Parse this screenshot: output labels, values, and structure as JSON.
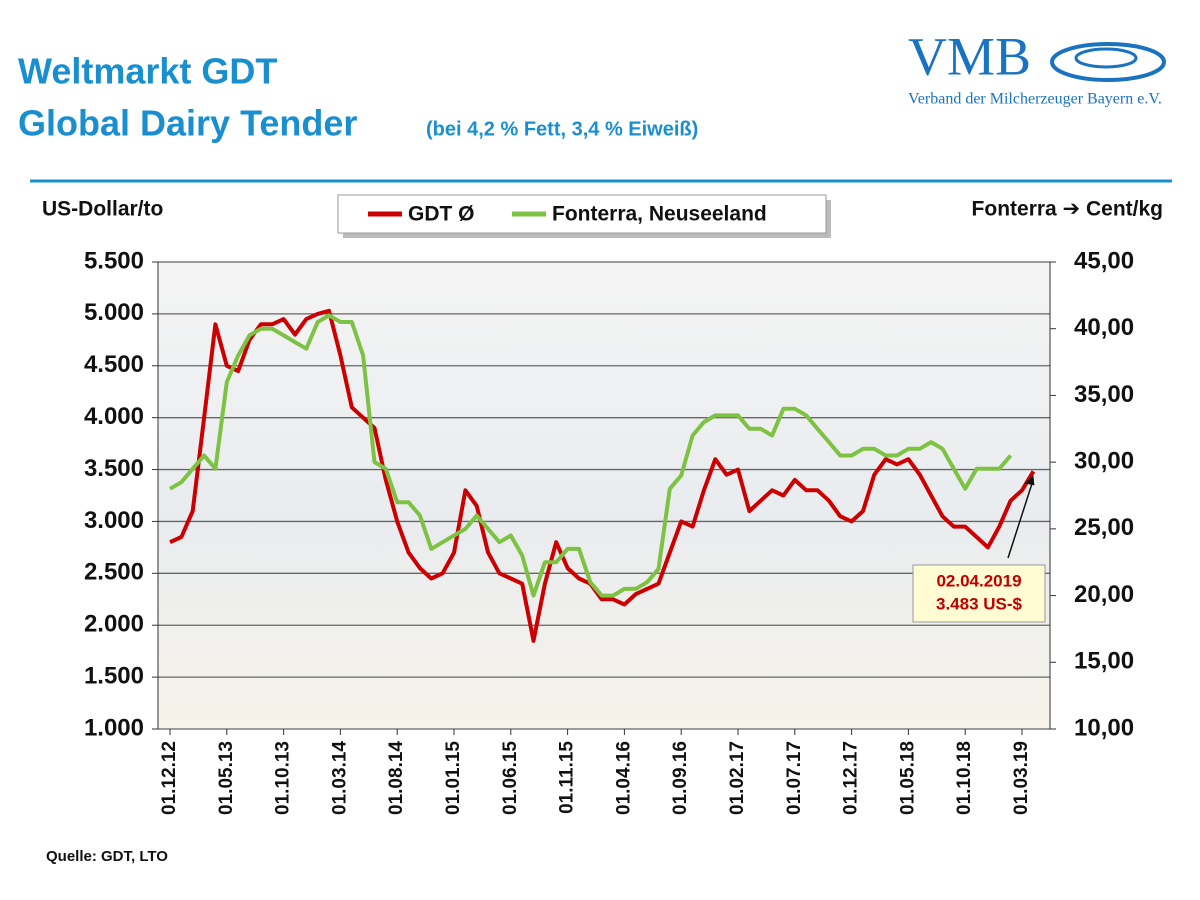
{
  "header": {
    "title_line1": "Weltmarkt GDT",
    "title_line2": "Global Dairy Tender",
    "title_note": "(bei 4,2 % Fett, 3,4 % Eiweiß)"
  },
  "logo": {
    "name": "VMB",
    "subtitle": "Verband der Milcherzeuger Bayern e.V."
  },
  "source": "Quelle: GDT, LTO",
  "chart_data": {
    "type": "line",
    "ylabel": "US-Dollar/to",
    "y2label": "Fonterra ➔ Cent/kg",
    "categories": [
      "01.12.12",
      null,
      null,
      null,
      null,
      "01.05.13",
      null,
      null,
      null,
      null,
      "01.10.13",
      null,
      null,
      null,
      null,
      "01.03.14",
      null,
      null,
      null,
      null,
      "01.08.14",
      null,
      null,
      null,
      null,
      "01.01.15",
      null,
      null,
      null,
      null,
      "01.06.15",
      null,
      null,
      null,
      null,
      "01.11.15",
      null,
      null,
      null,
      null,
      "01.04.16",
      null,
      null,
      null,
      null,
      "01.09.16",
      null,
      null,
      null,
      null,
      "01.02.17",
      null,
      null,
      null,
      null,
      "01.07.17",
      null,
      null,
      null,
      null,
      "01.12.17",
      null,
      null,
      null,
      null,
      "01.05.18",
      null,
      null,
      null,
      null,
      "01.10.18",
      null,
      null,
      null,
      null,
      "01.03.19",
      null
    ],
    "series": [
      {
        "name": "GDT Ø",
        "color": "#cc0000",
        "axis": "y",
        "values": [
          2800,
          2850,
          3100,
          4000,
          4900,
          4500,
          4450,
          4750,
          4900,
          4900,
          4950,
          4800,
          4950,
          5000,
          5030,
          4600,
          4100,
          4000,
          3900,
          3400,
          3000,
          2700,
          2550,
          2450,
          2500,
          2700,
          3300,
          3150,
          2700,
          2500,
          2450,
          2400,
          1850,
          2400,
          2800,
          2550,
          2450,
          2400,
          2250,
          2250,
          2200,
          2300,
          2350,
          2400,
          2700,
          3000,
          2950,
          3300,
          3600,
          3450,
          3500,
          3100,
          3200,
          3300,
          3250,
          3400,
          3300,
          3300,
          3200,
          3050,
          3000,
          3100,
          3450,
          3600,
          3550,
          3600,
          3450,
          3250,
          3050,
          2950,
          2950,
          2850,
          2750,
          2950,
          3200,
          3300,
          3483
        ]
      },
      {
        "name": "Fonterra, Neuseeland",
        "color": "#7dc242",
        "axis": "y2",
        "values": [
          28.0,
          28.5,
          29.5,
          30.5,
          29.5,
          36,
          38,
          39.5,
          40,
          40,
          39.5,
          39,
          38.5,
          40.5,
          41,
          40.5,
          40.5,
          38,
          30,
          29.5,
          27,
          27,
          26,
          23.5,
          24,
          24.5,
          25,
          26,
          25,
          24,
          24.5,
          23,
          20,
          22.5,
          22.5,
          23.5,
          23.5,
          21,
          20,
          20,
          20.5,
          20.5,
          21,
          22,
          28,
          29,
          32,
          33,
          33.5,
          33.5,
          33.5,
          32.5,
          32.5,
          32,
          34,
          34,
          33.5,
          32.5,
          31.5,
          30.5,
          30.5,
          31,
          31,
          30.5,
          30.5,
          31,
          31,
          31.5,
          31,
          29.5,
          28,
          29.5,
          29.5,
          29.5,
          30.5,
          null,
          null
        ]
      }
    ],
    "ylim": [
      1000,
      5500
    ],
    "yticks": [
      {
        "value": 1000,
        "label": "1.000"
      },
      {
        "value": 1500,
        "label": "1.500"
      },
      {
        "value": 2000,
        "label": "2.000"
      },
      {
        "value": 2500,
        "label": "2.500"
      },
      {
        "value": 3000,
        "label": "3.000"
      },
      {
        "value": 3500,
        "label": "3.500"
      },
      {
        "value": 4000,
        "label": "4.000"
      },
      {
        "value": 4500,
        "label": "4.500"
      },
      {
        "value": 5000,
        "label": "5.000"
      },
      {
        "value": 5500,
        "label": "5.500"
      }
    ],
    "y2lim": [
      10,
      45
    ],
    "y2ticks": [
      {
        "value": 10,
        "label": "10,00"
      },
      {
        "value": 15,
        "label": "15,00"
      },
      {
        "value": 20,
        "label": "20,00"
      },
      {
        "value": 25,
        "label": "25,00"
      },
      {
        "value": 30,
        "label": "30,00"
      },
      {
        "value": 35,
        "label": "35,00"
      },
      {
        "value": 40,
        "label": "40,00"
      },
      {
        "value": 45,
        "label": "45,00"
      }
    ],
    "grid": true,
    "legend": "top",
    "annotation": {
      "date": "02.04.2019",
      "text": "3.483 US-$"
    }
  }
}
